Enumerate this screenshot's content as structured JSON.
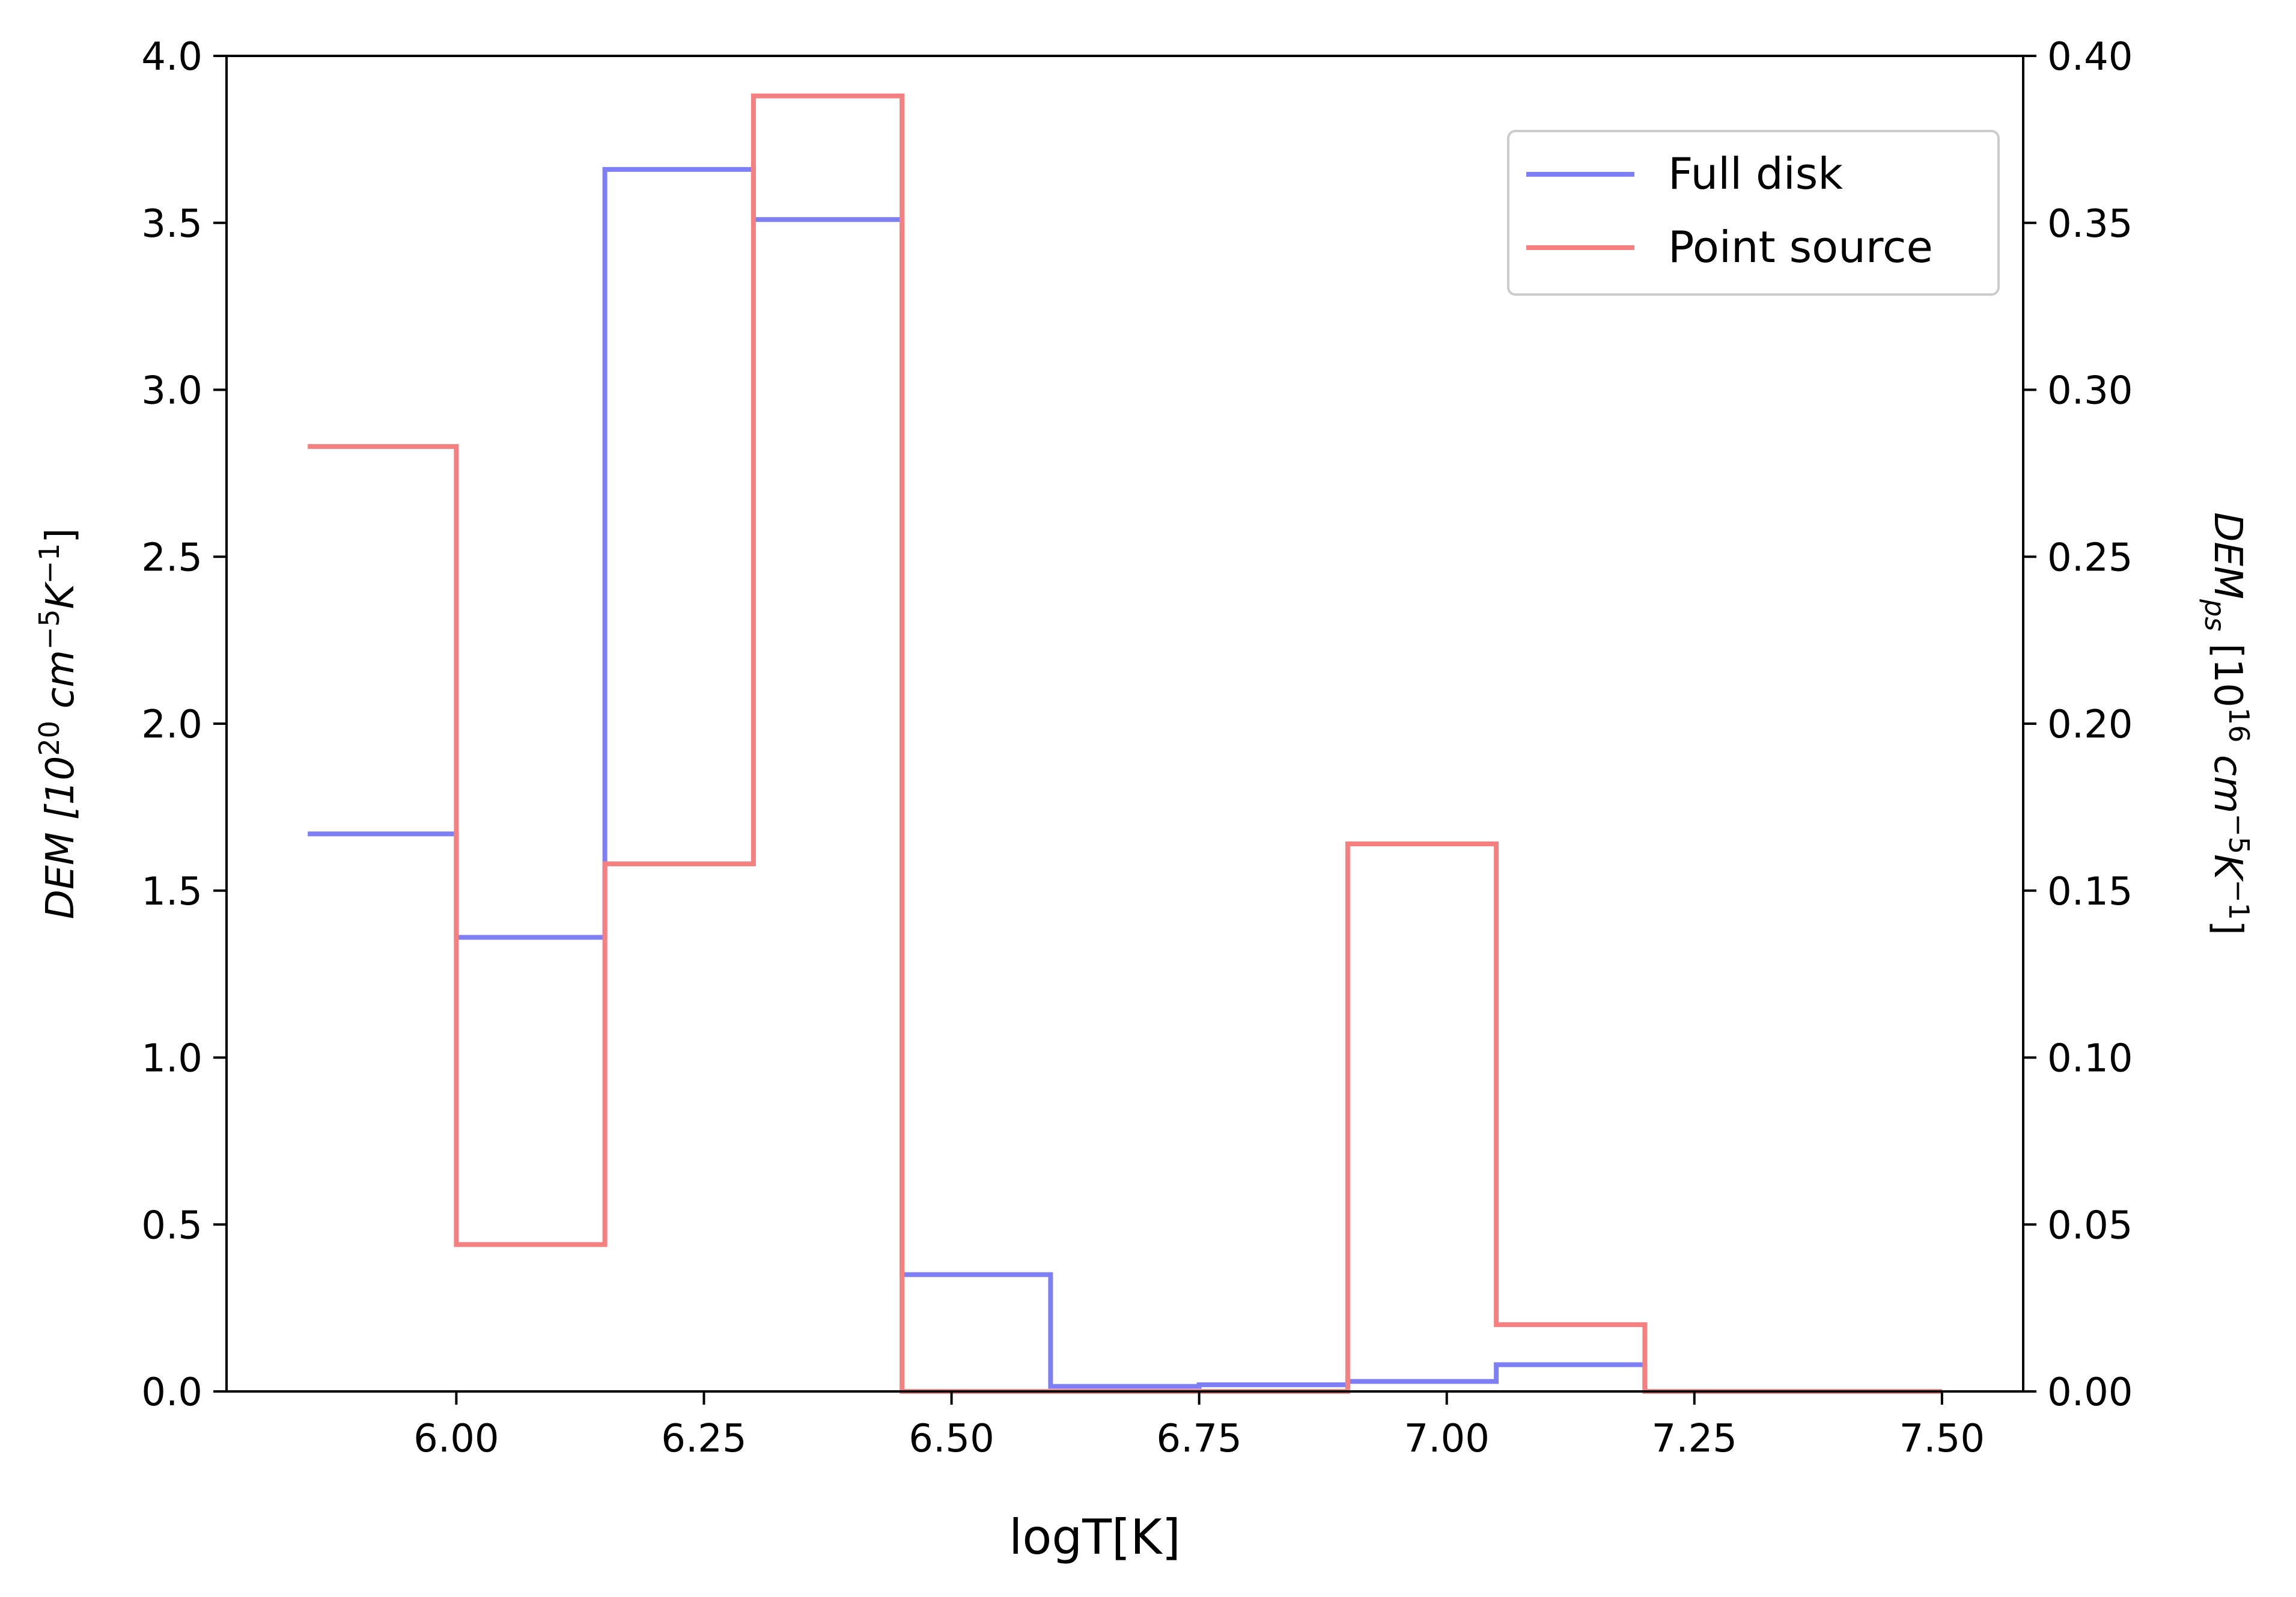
{
  "chart_data": {
    "type": "line",
    "drawstyle": "steps-post",
    "title": "",
    "xlabel": "logT[K]",
    "ylabel_left": {
      "base": "DEM [10",
      "exp": "20",
      "unit1": " cm",
      "unit1_exp": "−5",
      "unit2": "K",
      "unit2_exp": "−1",
      "close": "]"
    },
    "ylabel_right": {
      "base": "DEM",
      "sub": "ps",
      "mid": " [10",
      "exp": "16",
      "unit1": " cm",
      "unit1_exp": "−5",
      "unit2": "K",
      "unit2_exp": "−1",
      "close": "]"
    },
    "xlim": [
      5.768,
      7.582
    ],
    "ylim_left": [
      0,
      4.0
    ],
    "ylim_right": [
      0,
      0.4
    ],
    "x_ticks": [
      "6.00",
      "6.25",
      "6.50",
      "6.75",
      "7.00",
      "7.25",
      "7.50"
    ],
    "y_ticks_left": [
      "0.0",
      "0.5",
      "1.0",
      "1.5",
      "2.0",
      "2.5",
      "3.0",
      "3.5",
      "4.0"
    ],
    "y_ticks_right": [
      "0.00",
      "0.05",
      "0.10",
      "0.15",
      "0.20",
      "0.25",
      "0.30",
      "0.35",
      "0.40"
    ],
    "legend_position": "upper right",
    "series": [
      {
        "name": "Full disk",
        "axis": "left",
        "color": "#7f7ff5",
        "x": [
          5.85,
          6.0,
          6.15,
          6.3,
          6.45,
          6.6,
          6.75,
          6.9,
          7.05,
          7.2,
          7.35,
          7.5
        ],
        "y": [
          1.67,
          1.36,
          3.66,
          3.51,
          0.35,
          0.015,
          0.02,
          0.03,
          0.08,
          0.0,
          0.0,
          0.0
        ]
      },
      {
        "name": "Point source",
        "axis": "right",
        "color": "#f58080",
        "x": [
          5.85,
          6.0,
          6.15,
          6.3,
          6.45,
          6.6,
          6.75,
          6.9,
          7.05,
          7.2,
          7.35,
          7.5
        ],
        "y": [
          0.283,
          0.044,
          0.158,
          0.388,
          0.0,
          0.0,
          0.0,
          0.164,
          0.02,
          0.0,
          0.0,
          0.0
        ]
      }
    ]
  }
}
